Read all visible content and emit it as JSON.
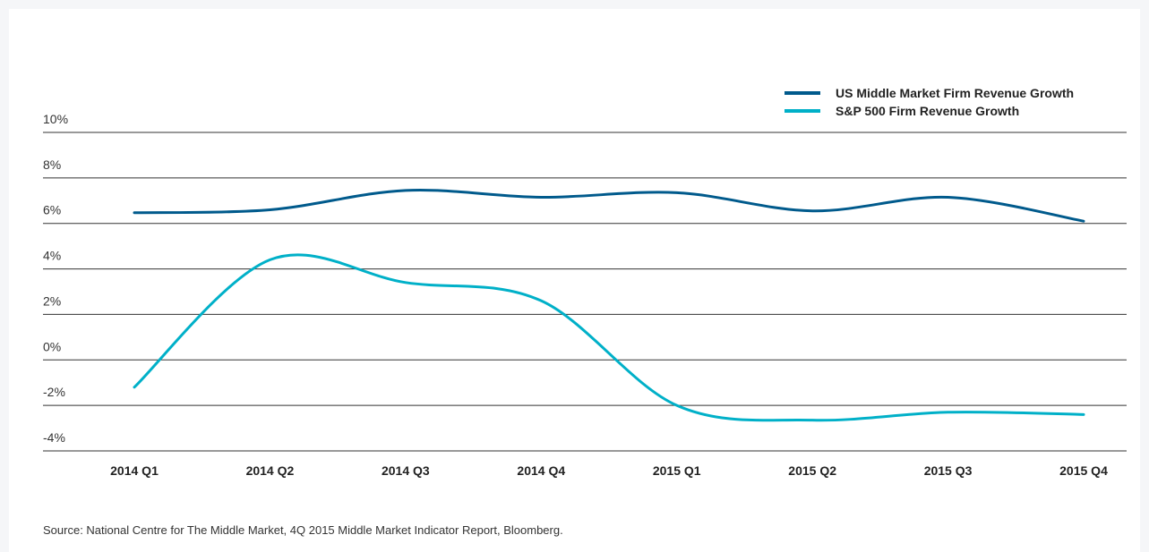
{
  "chart_data": {
    "type": "line",
    "categories": [
      "2014 Q1",
      "2014 Q2",
      "2014 Q3",
      "2014 Q4",
      "2015 Q1",
      "2015 Q2",
      "2015 Q3",
      "2015 Q4"
    ],
    "series": [
      {
        "name": "US Middle Market Firm Revenue Growth",
        "color": "#005a8c",
        "values": [
          6.47,
          6.6,
          7.45,
          7.15,
          7.35,
          6.55,
          7.15,
          6.1
        ]
      },
      {
        "name": "S&P 500 Firm Revenue Growth",
        "color": "#00b0c8",
        "values": [
          -1.2,
          4.4,
          3.4,
          2.6,
          -2.0,
          -2.65,
          -2.3,
          -2.4
        ]
      }
    ],
    "ylim": [
      -4,
      10
    ],
    "yticks": [
      {
        "value": 10,
        "label": "10%"
      },
      {
        "value": 8,
        "label": "8%"
      },
      {
        "value": 6,
        "label": "6%"
      },
      {
        "value": 4,
        "label": "4%"
      },
      {
        "value": 2,
        "label": "2%"
      },
      {
        "value": 0,
        "label": "0%"
      },
      {
        "value": -2,
        "label": "-2%"
      },
      {
        "value": -4,
        "label": "-4%"
      }
    ],
    "grid": true,
    "legend": "top-right",
    "source": "Source: National Centre for The Middle Market, 4Q 2015 Middle Market Indicator Report, Bloomberg."
  }
}
